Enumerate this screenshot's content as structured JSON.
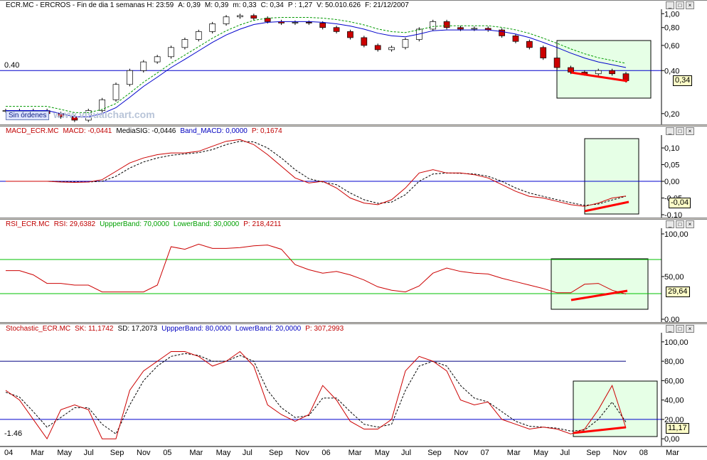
{
  "panes": [
    {
      "key": "price",
      "header": [
        "ECR.MC - ERCROS - Fin de dia 1 semanas H: 23:59",
        "A: 0,39",
        "M: 0,39",
        "m: 0,33",
        "C: 0,34",
        "P : 1,27",
        "V: 50.010.626",
        "F: 21/12/2007"
      ],
      "header_colors": [
        "#000000",
        "#000000",
        "#000000",
        "#000000",
        "#000000",
        "#000000",
        "#000000",
        "#000000"
      ],
      "ticks": [
        "1,00",
        "0,80",
        "0,60",
        "0,40",
        "0,20"
      ],
      "tick_vals": [
        1.0,
        0.8,
        0.6,
        0.4,
        0.2
      ],
      "left_label": "0.40",
      "value_box": "0,34",
      "orders_label": "Sin órdenes",
      "watermark": "www.visualchart.com"
    },
    {
      "key": "macd",
      "header": [
        "MACD_ECR.MC",
        "MACD: -0,0441",
        "MediaSIG: -0,0446",
        "Band_MACD: 0,0000",
        "P: 0,1674"
      ],
      "header_colors": [
        "#c00000",
        "#c00000",
        "#000000",
        "#0000c0",
        "#c00000"
      ],
      "ticks": [
        "0,10",
        "0,05",
        "0,00",
        "-0,05",
        "-0,10"
      ],
      "tick_vals": [
        0.1,
        0.05,
        0.0,
        -0.05,
        -0.1
      ],
      "value_box": "-0,04"
    },
    {
      "key": "rsi",
      "header": [
        "RSI_ECR.MC",
        "RSI: 29,6382",
        "UppperBand: 70,0000",
        "LowerBand: 30,0000",
        "P: 218,4211"
      ],
      "header_colors": [
        "#c00000",
        "#c00000",
        "#00a000",
        "#00a000",
        "#c00000"
      ],
      "ticks": [
        "100,00",
        "50,00",
        "0,00"
      ],
      "tick_vals": [
        100,
        50,
        0
      ],
      "value_box": "29,64"
    },
    {
      "key": "stoch",
      "header": [
        "Stochastic_ECR.MC",
        "SK: 11,1742",
        "SD: 17,2073",
        "UppperBand: 80,0000",
        "LowerBand: 20,0000",
        "P: 307,2993"
      ],
      "header_colors": [
        "#c00000",
        "#c00000",
        "#000000",
        "#0000c0",
        "#0000c0",
        "#c00000"
      ],
      "ticks": [
        "100,00",
        "80,00",
        "60,00",
        "40,00",
        "20,00",
        "0,00"
      ],
      "tick_vals": [
        100,
        80,
        60,
        40,
        20,
        0
      ],
      "left_label": "-1.46",
      "value_box": "11,17"
    }
  ],
  "x_axis": {
    "labels": [
      "04",
      "Mar",
      "May",
      "Jul",
      "Sep",
      "Nov",
      "05",
      "Mar",
      "May",
      "Jul",
      "Sep",
      "Nov",
      "06",
      "Mar",
      "May",
      "Jul",
      "Sep",
      "Nov",
      "07",
      "Mar",
      "May",
      "Jul",
      "Sep",
      "Nov",
      "08",
      "Mar"
    ]
  },
  "colors": {
    "up": "#ffffff",
    "down": "#cc0000",
    "sma": "#0000cc",
    "signal": "#009900",
    "macd": "#cc0000",
    "band": "#0000cc",
    "rsi_band": "#00c000",
    "box_fill": "#e6ffe6",
    "box_stroke": "#000000",
    "divergence": "#ff0000"
  },
  "chart_data": [
    {
      "type": "line",
      "series": [
        {
          "values": [
            0.21,
            0.21,
            0.21,
            0.2,
            0.19,
            0.18,
            0.21,
            0.25,
            0.32,
            0.4,
            0.46,
            0.5,
            0.58,
            0.66,
            0.75,
            0.85,
            0.95,
            0.97,
            0.93,
            0.88,
            0.86,
            0.87,
            0.86,
            0.8,
            0.75,
            0.68,
            0.6,
            0.56,
            0.58,
            0.66,
            0.78,
            0.88,
            0.8,
            0.78,
            0.79,
            0.77,
            0.7,
            0.64,
            0.58,
            0.49,
            0.42,
            0.39,
            0.38,
            0.4,
            0.38,
            0.34
          ]
        },
        {
          "values": [
            0.21,
            0.21,
            0.21,
            0.21,
            0.2,
            0.19,
            0.19,
            0.2,
            0.22,
            0.26,
            0.31,
            0.36,
            0.42,
            0.48,
            0.55,
            0.63,
            0.71,
            0.78,
            0.84,
            0.87,
            0.88,
            0.88,
            0.88,
            0.87,
            0.85,
            0.82,
            0.78,
            0.73,
            0.7,
            0.69,
            0.72,
            0.76,
            0.77,
            0.77,
            0.77,
            0.77,
            0.75,
            0.72,
            0.68,
            0.63,
            0.58,
            0.53,
            0.49,
            0.46,
            0.44,
            0.42
          ]
        }
      ],
      "ylim": [
        0.18,
        1.05
      ]
    },
    {
      "type": "line",
      "series": [
        {
          "values": [
            0.0,
            0.0,
            0.0,
            0.0,
            -0.002,
            -0.003,
            -0.002,
            0.005,
            0.03,
            0.055,
            0.07,
            0.08,
            0.085,
            0.085,
            0.09,
            0.105,
            0.12,
            0.125,
            0.11,
            0.08,
            0.045,
            0.01,
            -0.005,
            0.0,
            -0.02,
            -0.05,
            -0.065,
            -0.07,
            -0.055,
            -0.02,
            0.025,
            0.035,
            0.025,
            0.025,
            0.02,
            0.01,
            -0.01,
            -0.03,
            -0.045,
            -0.05,
            -0.06,
            -0.07,
            -0.075,
            -0.065,
            -0.05,
            -0.044
          ]
        },
        {
          "values": [
            0.0,
            0.0,
            0.0,
            0.0,
            -0.001,
            -0.002,
            -0.002,
            0.0,
            0.015,
            0.04,
            0.058,
            0.07,
            0.078,
            0.082,
            0.086,
            0.095,
            0.11,
            0.12,
            0.118,
            0.1,
            0.07,
            0.035,
            0.008,
            -0.002,
            -0.01,
            -0.035,
            -0.055,
            -0.066,
            -0.062,
            -0.04,
            0.0,
            0.022,
            0.025,
            0.024,
            0.022,
            0.015,
            0.0,
            -0.02,
            -0.035,
            -0.045,
            -0.055,
            -0.064,
            -0.072,
            -0.068,
            -0.056,
            -0.0446
          ]
        }
      ],
      "ylim": [
        -0.1,
        0.13
      ]
    },
    {
      "type": "line",
      "series": [
        {
          "values": [
            57,
            57,
            52,
            42,
            42,
            40,
            40,
            32,
            32,
            32,
            32,
            40,
            85,
            82,
            88,
            83,
            83,
            84,
            86,
            87,
            82,
            64,
            58,
            54,
            56,
            52,
            46,
            38,
            34,
            32,
            39,
            54,
            60,
            56,
            54,
            53,
            48,
            44,
            40,
            36,
            31,
            31,
            41,
            42,
            34,
            29.6
          ]
        }
      ],
      "ylim": [
        0,
        100
      ]
    },
    {
      "type": "line",
      "series": [
        {
          "values": [
            50,
            40,
            20,
            0,
            30,
            35,
            30,
            0,
            0,
            50,
            70,
            80,
            90,
            90,
            85,
            75,
            80,
            90,
            75,
            35,
            25,
            18,
            25,
            55,
            40,
            18,
            10,
            10,
            20,
            70,
            85,
            80,
            70,
            40,
            35,
            38,
            20,
            15,
            10,
            12,
            10,
            5,
            10,
            30,
            55,
            11.17
          ]
        },
        {
          "values": [
            48,
            43,
            28,
            12,
            22,
            32,
            32,
            15,
            5,
            35,
            60,
            75,
            85,
            88,
            86,
            80,
            80,
            86,
            80,
            50,
            32,
            22,
            24,
            42,
            42,
            28,
            15,
            12,
            15,
            50,
            75,
            80,
            75,
            55,
            42,
            38,
            28,
            18,
            13,
            12,
            11,
            8,
            9,
            20,
            38,
            17.2
          ]
        }
      ],
      "ylim": [
        -5,
        105
      ]
    }
  ]
}
